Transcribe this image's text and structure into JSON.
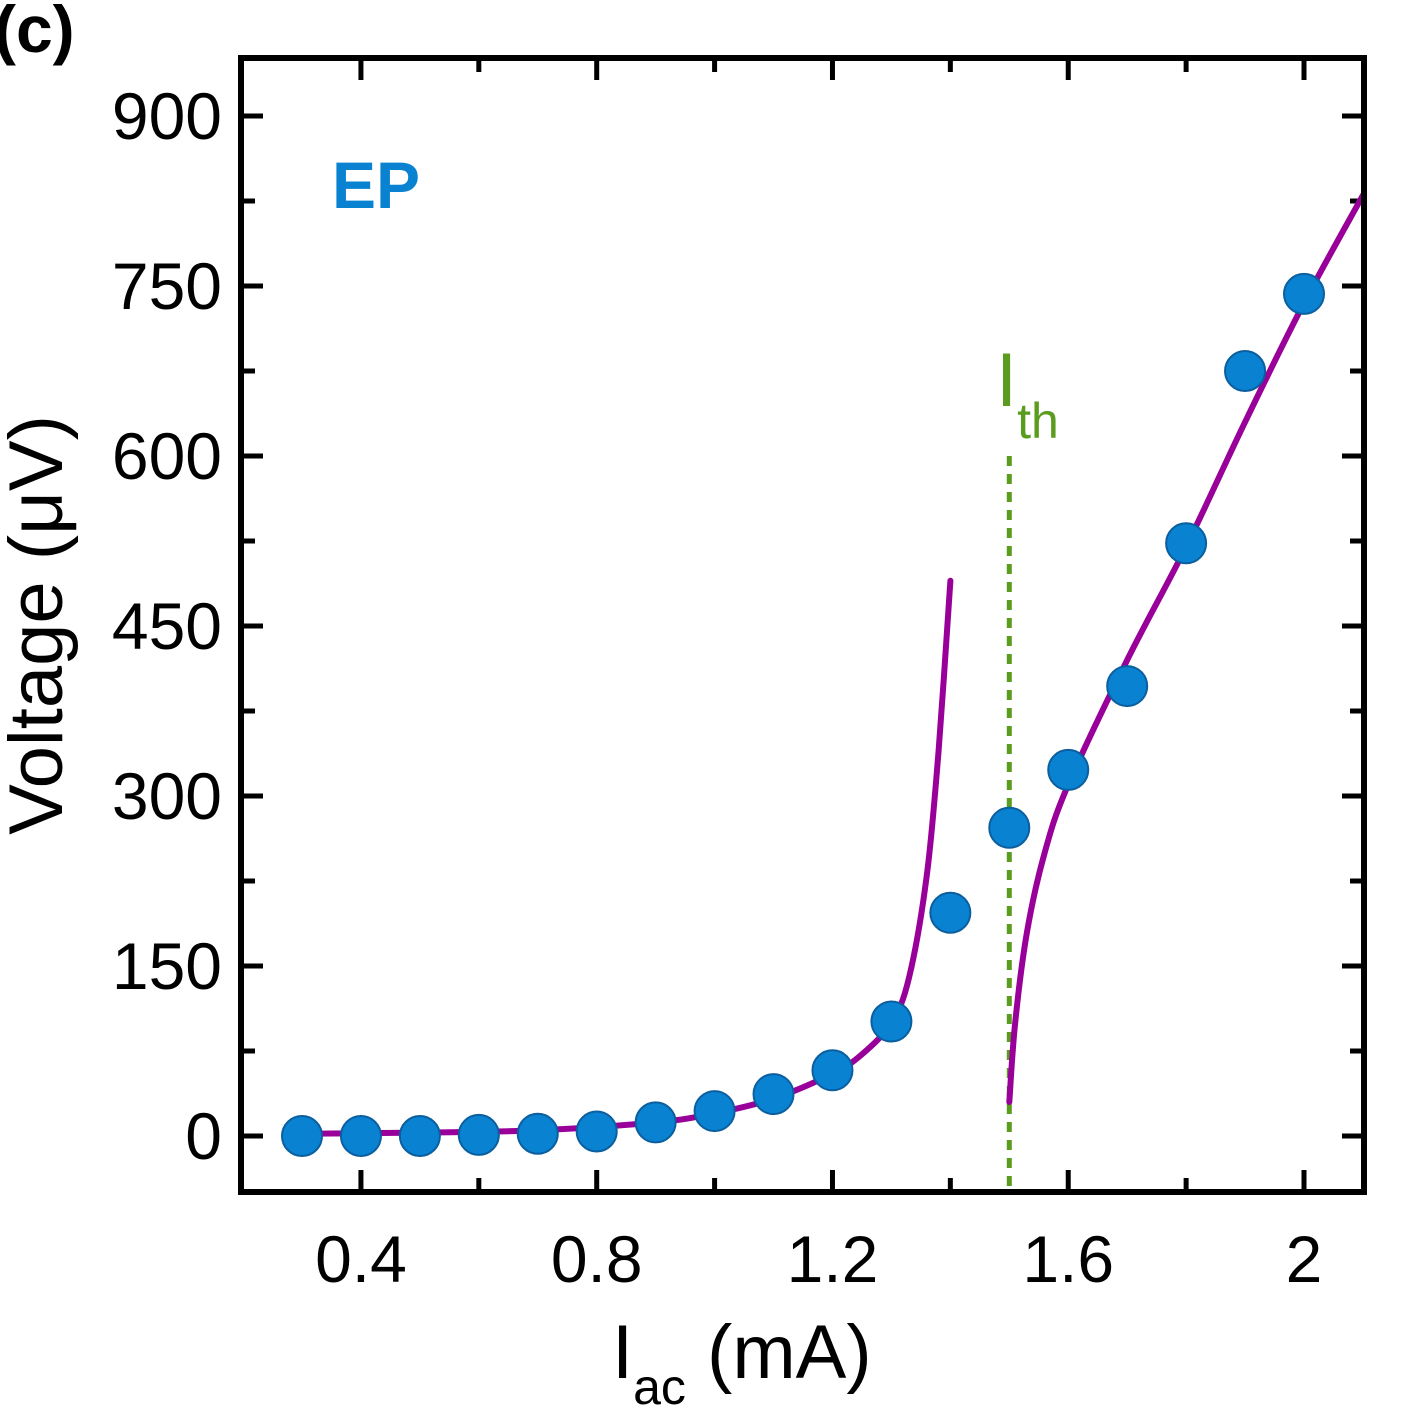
{
  "panel_label": "(c)",
  "chart_data": {
    "type": "scatter",
    "title": "",
    "xlabel": {
      "main": "I",
      "sub": "ac",
      "unit": " (mA)"
    },
    "ylabel": "Voltage (μV)",
    "xlim": [
      0.2,
      2.1
    ],
    "ylim": [
      -50,
      950
    ],
    "xticks": [
      0.4,
      0.8,
      1.2,
      1.6,
      2.0
    ],
    "xtick_labels": [
      "0.4",
      "0.8",
      "1.2",
      "1.6",
      "2"
    ],
    "yticks": [
      0,
      150,
      300,
      450,
      600,
      750,
      900
    ],
    "ytick_labels": [
      "0",
      "150",
      "300",
      "450",
      "600",
      "750",
      "900"
    ],
    "series": [
      {
        "name": "EP",
        "color": "#0a82d2",
        "x": [
          0.3,
          0.4,
          0.5,
          0.6,
          0.7,
          0.8,
          0.9,
          1.0,
          1.1,
          1.2,
          1.3,
          1.4,
          1.5,
          1.6,
          1.7,
          1.8,
          1.9,
          2.0
        ],
        "y": [
          0,
          0,
          0,
          1,
          2,
          4,
          12,
          22,
          37,
          58,
          101,
          197,
          272,
          323,
          397,
          523,
          675,
          743
        ]
      }
    ],
    "fits": [
      {
        "name": "fit-below-threshold",
        "color": "#990099",
        "x": [
          0.3,
          0.5,
          0.7,
          0.9,
          1.0,
          1.1,
          1.2,
          1.25,
          1.3,
          1.33,
          1.36,
          1.38,
          1.4
        ],
        "y": [
          2,
          3,
          5,
          12,
          20,
          33,
          55,
          72,
          100,
          140,
          230,
          340,
          490
        ]
      },
      {
        "name": "fit-above-threshold",
        "color": "#990099",
        "x": [
          1.5,
          1.51,
          1.53,
          1.56,
          1.6,
          1.7,
          1.8,
          1.9,
          2.0,
          2.1
        ],
        "y": [
          30,
          100,
          180,
          250,
          310,
          420,
          520,
          630,
          735,
          830
        ]
      }
    ],
    "threshold": {
      "x": 1.5,
      "y_top": 600,
      "label_main": "I",
      "label_sub": "th",
      "color": "#5a9c1e"
    },
    "legend": {
      "text": "EP",
      "color": "#0a82d2",
      "placement": "top-left"
    }
  }
}
